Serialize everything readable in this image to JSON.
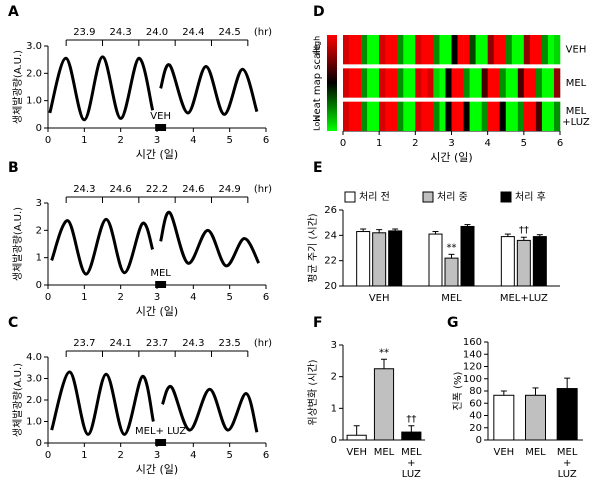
{
  "chart_data": [
    {
      "type": "line",
      "panel": "A",
      "ylabel": "생체발광량(A.U.)",
      "xlabel": "시간 (일)",
      "x": [
        0.05,
        0.5,
        1.0,
        1.5,
        2.0,
        2.5,
        2.88,
        3.0,
        3.1,
        3.35,
        3.85,
        4.35,
        4.85,
        5.35,
        5.75
      ],
      "values": [
        0.55,
        2.55,
        0.3,
        2.6,
        0.35,
        2.55,
        0.65,
        null,
        1.45,
        2.3,
        0.55,
        2.25,
        0.5,
        2.15,
        0.6
      ],
      "color": "#000000",
      "xlim": [
        0,
        6
      ],
      "xticks": [
        0,
        1,
        2,
        3,
        4,
        5,
        6
      ],
      "ylim": [
        0,
        3
      ],
      "yticks": [
        0,
        {
          "value": 1,
          "label": "1.0"
        },
        {
          "value": 2,
          "label": "2.0"
        },
        {
          "value": 3,
          "label": "3.0"
        }
      ],
      "period_labels": [
        "23.9",
        "24.3",
        "24.0",
        "24.4",
        "24.5"
      ],
      "period_unit": "(hr)",
      "treatment": {
        "label": "VEH",
        "x": [
          2.95,
          3.25
        ]
      }
    },
    {
      "type": "line",
      "panel": "B",
      "ylabel": "생체발광량(A.U.)",
      "xlabel": "시간 (일)",
      "x": [
        0.1,
        0.55,
        1.05,
        1.6,
        2.1,
        2.6,
        2.88,
        3.0,
        3.1,
        3.35,
        3.85,
        4.4,
        4.9,
        5.4,
        5.8
      ],
      "values": [
        0.9,
        2.35,
        0.4,
        2.4,
        0.45,
        2.25,
        1.3,
        null,
        1.6,
        2.65,
        0.8,
        2.0,
        0.7,
        1.7,
        0.8
      ],
      "color": "#000000",
      "xlim": [
        0,
        6
      ],
      "xticks": [
        0,
        1,
        2,
        3,
        4,
        5,
        6
      ],
      "ylim": [
        0,
        3
      ],
      "yticks": [
        0,
        1,
        2,
        3
      ],
      "period_labels": [
        "24.3",
        "24.6",
        "22.2",
        "24.6",
        "24.9"
      ],
      "period_unit": "(hr)",
      "treatment": {
        "label": "MEL",
        "x": [
          2.95,
          3.25
        ]
      }
    },
    {
      "type": "line",
      "panel": "C",
      "ylabel": "생체발광량(A.U.)",
      "xlabel": "시간 (일)",
      "x": [
        0.1,
        0.6,
        1.1,
        1.6,
        2.1,
        2.6,
        2.9,
        3.0,
        3.15,
        3.4,
        3.9,
        4.45,
        4.95,
        5.45,
        5.75
      ],
      "values": [
        0.6,
        3.3,
        0.4,
        3.2,
        0.4,
        3.1,
        1.0,
        null,
        1.8,
        2.6,
        0.6,
        2.5,
        0.6,
        2.3,
        0.5
      ],
      "color": "#000000",
      "xlim": [
        0,
        6
      ],
      "xticks": [
        0,
        1,
        2,
        3,
        4,
        5,
        6
      ],
      "ylim": [
        0,
        4
      ],
      "yticks": [
        0,
        {
          "value": 1,
          "label": "1.0"
        },
        {
          "value": 2,
          "label": "2.0"
        },
        {
          "value": 3,
          "label": "3.0"
        },
        {
          "value": 4,
          "label": "4.0"
        }
      ],
      "period_labels": [
        "23.7",
        "24.1",
        "23.7",
        "24.3",
        "23.5"
      ],
      "period_unit": "(hr)",
      "treatment": {
        "label": "MEL+ LUZ",
        "x": [
          2.95,
          3.25
        ]
      }
    },
    {
      "type": "heatmap",
      "panel": "D",
      "xlabel": "시간 (일)",
      "scale_label": "Heat map scale",
      "scale_high": "High",
      "scale_low": "Low",
      "xlim": [
        0,
        6
      ],
      "xticks": [
        0,
        1,
        2,
        3,
        4,
        5,
        6
      ],
      "rows": [
        {
          "name": [
            "VEH"
          ],
          "values": [
            0.6,
            1,
            0.8,
            -0.4,
            -1,
            -0.8,
            0.6,
            1,
            0.8,
            -0.4,
            -1,
            -0.8,
            0.6,
            1,
            0.8,
            -0.4,
            -1,
            -0.8,
            0,
            1,
            0.8,
            -0.2,
            -1,
            -0.8,
            0.4,
            1,
            0.8,
            -0.4,
            -1,
            -0.8,
            0.4,
            1,
            0.8,
            -0.4,
            -1,
            -0.6
          ]
        },
        {
          "name": [
            "MEL"
          ],
          "values": [
            0.6,
            1,
            0.8,
            -0.4,
            -1,
            -0.8,
            0.6,
            1,
            0.8,
            -0.4,
            -1,
            -0.8,
            0.6,
            1,
            0.6,
            -0.6,
            -1,
            0,
            1,
            0.8,
            -0.4,
            -1,
            -0.8,
            0.2,
            1,
            0.8,
            -0.4,
            -1,
            -0.8,
            0.2,
            1,
            0.8,
            -0.4,
            -1,
            -0.8,
            0.4
          ]
        },
        {
          "name": [
            "MEL",
            "+LUZ"
          ],
          "values": [
            0.6,
            1,
            0.8,
            -0.4,
            -1,
            -0.8,
            0.6,
            1,
            0.8,
            -0.4,
            -1,
            -0.8,
            0.6,
            1,
            0.8,
            -0.4,
            -1,
            0,
            0.8,
            1,
            0,
            -0.8,
            -1,
            -0.4,
            0.8,
            1,
            0,
            -0.8,
            -1,
            -0.4,
            0.8,
            1,
            0.2,
            -0.8,
            -1,
            -0.4
          ]
        }
      ]
    },
    {
      "type": "grouped_bar",
      "panel": "E",
      "ylabel": "평균 주기 (시간)",
      "categories": [
        [
          "VEH"
        ],
        [
          "MEL"
        ],
        [
          "MEL+LUZ"
        ]
      ],
      "series": [
        {
          "name": "처리 전",
          "color": "#ffffff",
          "values": [
            24.3,
            24.1,
            23.9
          ],
          "errors": [
            0.2,
            0.2,
            0.2
          ],
          "annotations": [
            null,
            null,
            null
          ]
        },
        {
          "name": "처리 중",
          "color": "#c0c0c0",
          "values": [
            24.2,
            22.2,
            23.6
          ],
          "errors": [
            0.25,
            0.3,
            0.25
          ],
          "annotations": [
            null,
            "**",
            "††"
          ]
        },
        {
          "name": "처리 후",
          "color": "#000000",
          "values": [
            24.35,
            24.7,
            23.9
          ],
          "errors": [
            0.15,
            0.15,
            0.15
          ],
          "annotations": [
            null,
            null,
            null
          ]
        }
      ],
      "ylim": [
        20,
        26
      ],
      "yticks": [
        20,
        22,
        24,
        26
      ]
    },
    {
      "type": "bar",
      "panel": "F",
      "ylabel": "위상변화 (시간)",
      "categories": [
        [
          "VEH"
        ],
        [
          "MEL"
        ],
        [
          "MEL",
          "+",
          "LUZ"
        ]
      ],
      "values": [
        0.15,
        2.25,
        0.25
      ],
      "errors": [
        0.3,
        0.3,
        0.2
      ],
      "colors": [
        "#ffffff",
        "#c0c0c0",
        "#000000"
      ],
      "annotations": [
        null,
        "**",
        "††"
      ],
      "ylim": [
        0,
        3
      ],
      "yticks": [
        0,
        1,
        2,
        3
      ]
    },
    {
      "type": "bar",
      "panel": "G",
      "ylabel": "진폭 (%)",
      "categories": [
        [
          "VEH"
        ],
        [
          "MEL"
        ],
        [
          "MEL",
          "+",
          "LUZ"
        ]
      ],
      "values": [
        73,
        73,
        84
      ],
      "errors": [
        7,
        12,
        17
      ],
      "colors": [
        "#ffffff",
        "#c0c0c0",
        "#000000"
      ],
      "annotations": [
        null,
        null,
        null
      ],
      "ylim": [
        0,
        160
      ],
      "yticks": [
        0,
        20,
        40,
        60,
        80,
        100,
        120,
        140,
        160
      ]
    }
  ]
}
